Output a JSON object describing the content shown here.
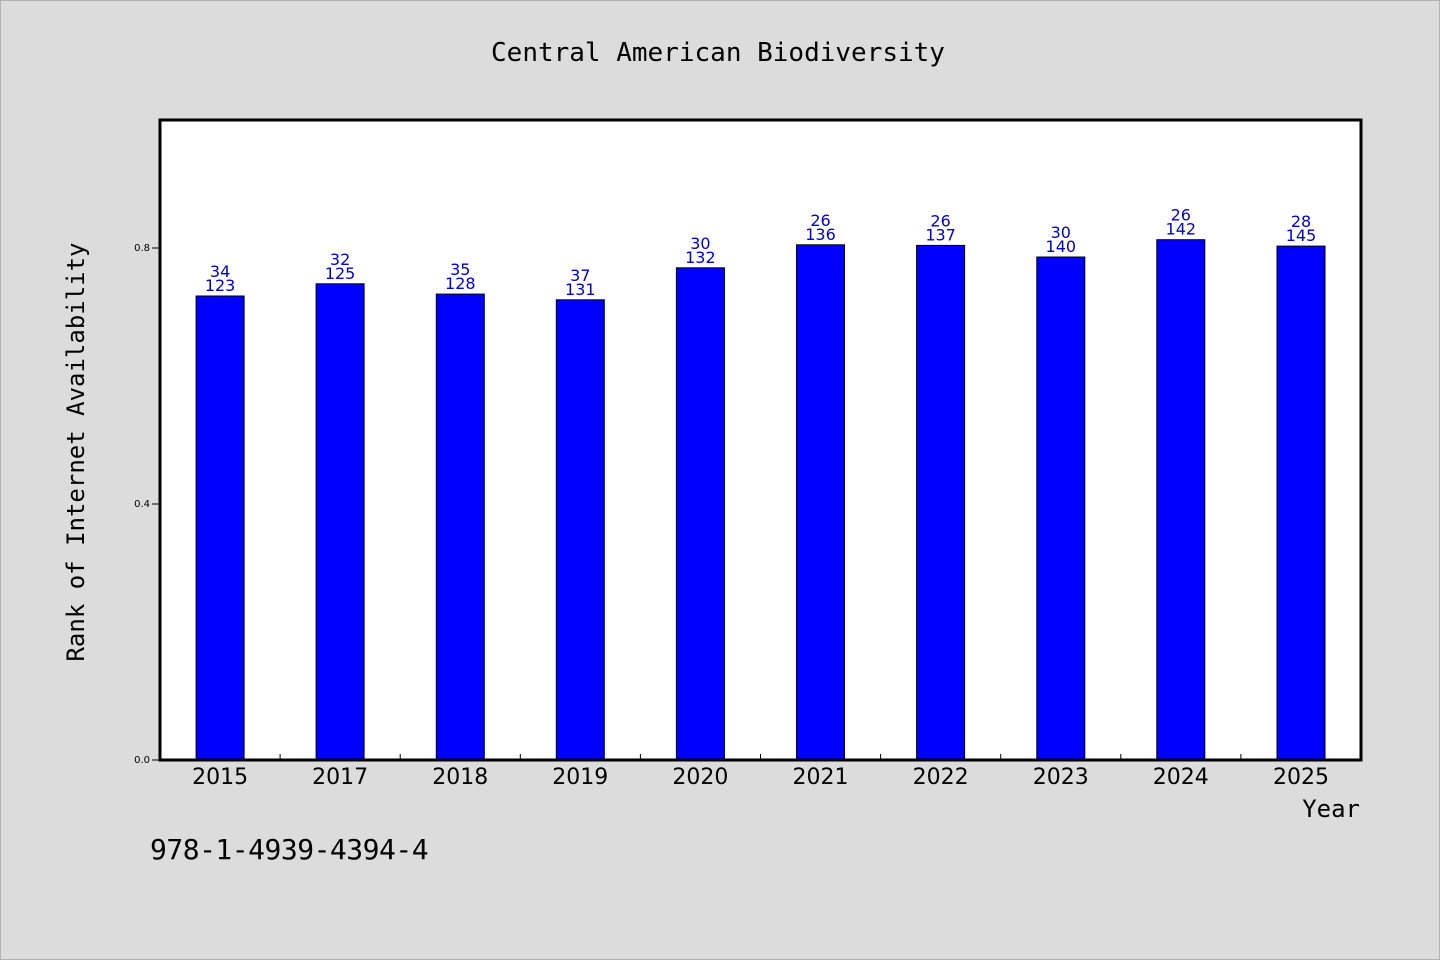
{
  "chart_data": {
    "type": "bar",
    "title": "Central American Biodiversity",
    "xlabel": "Year",
    "ylabel": "Rank of Internet Availability",
    "ylim": [
      0,
      1.0
    ],
    "yticks": [
      "0.0",
      "0.4",
      "0.8"
    ],
    "ytick_values": [
      0.0,
      0.4,
      0.8
    ],
    "grid": false,
    "bar_color": "#0000ff",
    "label_color": "#0000cc",
    "categories": [
      "2015",
      "2017",
      "2018",
      "2019",
      "2020",
      "2021",
      "2022",
      "2023",
      "2024",
      "2025"
    ],
    "values": [
      0.725,
      0.744,
      0.728,
      0.719,
      0.769,
      0.805,
      0.804,
      0.786,
      0.813,
      0.803
    ],
    "annotations_top": [
      "34",
      "32",
      "35",
      "37",
      "30",
      "26",
      "26",
      "30",
      "26",
      "28"
    ],
    "annotations_bottom": [
      "123",
      "125",
      "128",
      "131",
      "132",
      "136",
      "137",
      "140",
      "142",
      "145"
    ]
  },
  "footer": {
    "code": "978-1-4939-4394-4"
  }
}
